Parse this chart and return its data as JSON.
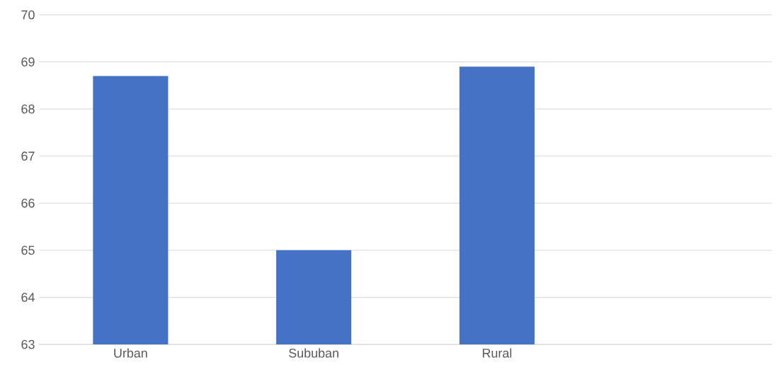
{
  "chart_data": {
    "type": "bar",
    "categories": [
      "Urban",
      "Sububan",
      "Rural",
      null
    ],
    "values": [
      68.7,
      65.0,
      68.9,
      null
    ],
    "color": "#4472c4",
    "ylim": [
      63,
      70
    ],
    "yticks": [
      63,
      64,
      65,
      66,
      67,
      68,
      69,
      70
    ],
    "grid": "y"
  }
}
